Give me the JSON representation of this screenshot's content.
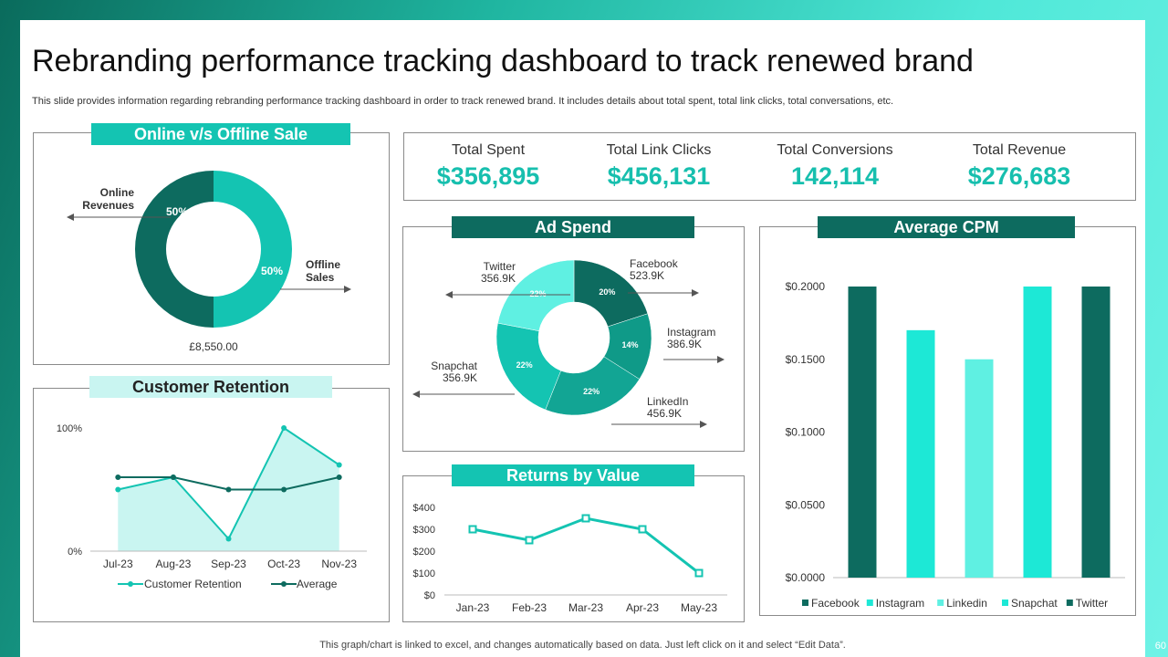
{
  "title": "Rebranding performance tracking dashboard to track renewed brand",
  "subtitle": "This slide provides information regarding rebranding performance tracking dashboard in order to track renewed brand. It includes details about total spent, total link clicks, total conversations, etc.",
  "footer": "This graph/chart is linked to excel,  and changes automatically based on data. Just left click on it and select “Edit Data”.",
  "page_number": "60",
  "colors": {
    "teal": "#14c4b2",
    "dark_teal": "#0d6b5f",
    "accent_value": "#17bfae",
    "light_teal": "#c9f5f1",
    "aqua": "#1de8d6",
    "mid_teal": "#0f9a88",
    "pale": "#5ff0e2"
  },
  "kpis": [
    {
      "label": "Total Spent",
      "value": "$356,895"
    },
    {
      "label": "Total Link Clicks",
      "value": "$456,131"
    },
    {
      "label": "Total Conversions",
      "value": "142,114"
    },
    {
      "label": "Total Revenue",
      "value": "$276,683"
    }
  ],
  "headers": {
    "online_offline": "Online v/s Offline Sale",
    "ad_spend": "Ad Spend",
    "average_cpm": "Average CPM",
    "customer_retention": "Customer Retention",
    "returns_by_value": "Returns by Value"
  },
  "chart_data": [
    {
      "id": "online_offline",
      "type": "pie",
      "title": "Online v/s Offline Sale",
      "slices": [
        {
          "label": "Online Revenues",
          "label_lines": [
            "Online",
            "Revenues"
          ],
          "pct_label": "50%",
          "value": 50
        },
        {
          "label": "Offline Sales",
          "label_lines": [
            "Offline",
            "Sales"
          ],
          "pct_label": "50%",
          "value": 50
        }
      ],
      "total_label": "£8,550.00"
    },
    {
      "id": "ad_spend",
      "type": "pie",
      "title": "Ad Spend",
      "slices": [
        {
          "label": "Facebook",
          "amount": "523.9K",
          "pct_label": "20%",
          "value": 20
        },
        {
          "label": "Instagram",
          "amount": "386.9K",
          "pct_label": "14%",
          "value": 14
        },
        {
          "label": "LinkedIn",
          "amount": "456.9K",
          "pct_label": "22%",
          "value": 22
        },
        {
          "label": "Snapchat",
          "amount": "356.9K",
          "pct_label": "22%",
          "value": 22
        },
        {
          "label": "Twitter",
          "amount": "356.9K",
          "pct_label": "22%",
          "value": 22
        }
      ]
    },
    {
      "id": "average_cpm",
      "type": "bar",
      "title": "Average CPM",
      "categories": [
        "Facebook",
        "Instagram",
        "Linkedin",
        "Snapchat",
        "Twitter"
      ],
      "values": [
        0.2,
        0.17,
        0.15,
        0.2,
        0.2
      ],
      "yticks": [
        "$0.0000",
        "$0.0500",
        "$0.1000",
        "$0.1500",
        "$0.2000"
      ],
      "ylim": [
        0,
        0.2
      ],
      "legend_position": "bottom"
    },
    {
      "id": "customer_retention",
      "type": "area",
      "title": "Customer Retention",
      "categories": [
        "Jul-23",
        "Aug-23",
        "Sep-23",
        "Oct-23",
        "Nov-23"
      ],
      "series": [
        {
          "name": "Customer Retention",
          "values": [
            50,
            60,
            10,
            100,
            70
          ]
        },
        {
          "name": "Average",
          "values": [
            60,
            60,
            50,
            50,
            60
          ]
        }
      ],
      "yticks": [
        "0%",
        "100%"
      ],
      "ylim": [
        0,
        100
      ],
      "legend_position": "bottom"
    },
    {
      "id": "returns_by_value",
      "type": "line",
      "title": "Returns by Value",
      "categories": [
        "Jan-23",
        "Feb-23",
        "Mar-23",
        "Apr-23",
        "May-23"
      ],
      "values": [
        300,
        250,
        350,
        300,
        100
      ],
      "yticks": [
        "$0",
        "$100",
        "$200",
        "$300",
        "$400"
      ],
      "ylim": [
        0,
        400
      ]
    }
  ]
}
